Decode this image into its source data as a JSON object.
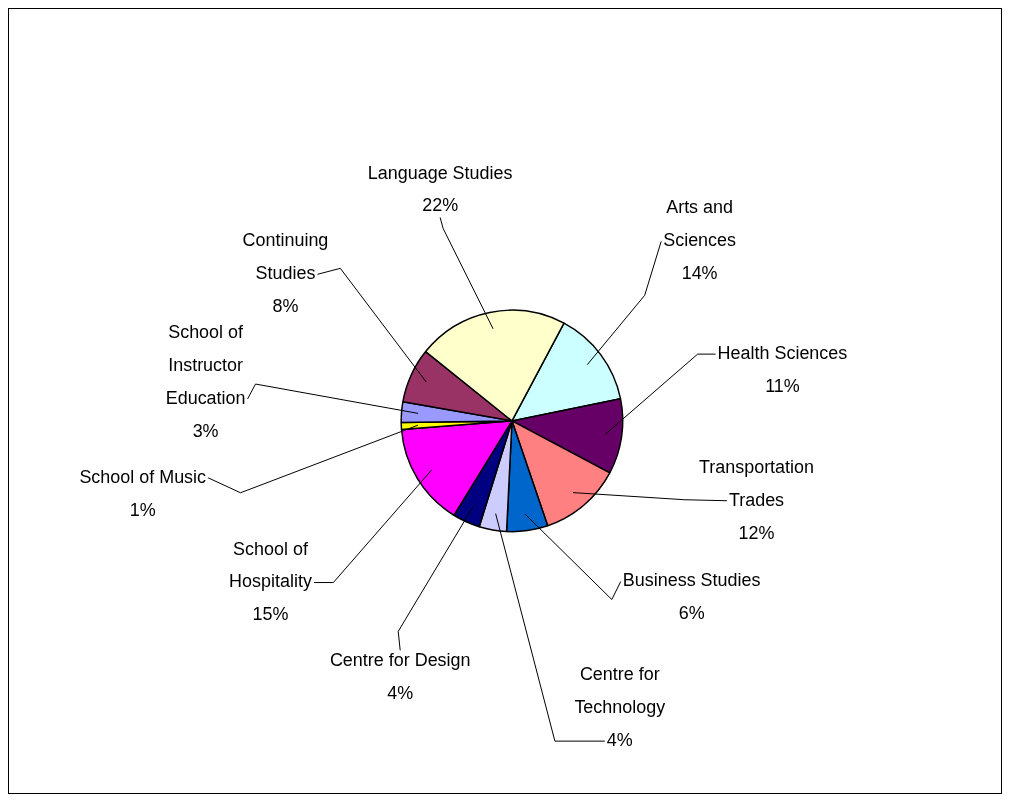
{
  "chart_data": {
    "type": "pie",
    "categories": [
      "Arts and Sciences",
      "Health Sciences",
      "Transportation Trades",
      "Business Studies",
      "Centre for Technology",
      "Centre for Design",
      "School of Hospitality",
      "School of Music",
      "School of Instructor Education",
      "Continuing Studies",
      "Language Studies"
    ],
    "values": [
      14,
      11,
      12,
      6,
      4,
      4,
      15,
      1,
      3,
      8,
      22
    ],
    "value_labels": [
      "14%",
      "11%",
      "12%",
      "6%",
      "4%",
      "4%",
      "15%",
      "1%",
      "3%",
      "8%",
      "22%"
    ],
    "colors": [
      "#ccffff",
      "#660066",
      "#ff8080",
      "#0066cc",
      "#ccccff",
      "#000080",
      "#ff00ff",
      "#ffff00",
      "#9999ff",
      "#993366",
      "#ffffcc"
    ]
  }
}
